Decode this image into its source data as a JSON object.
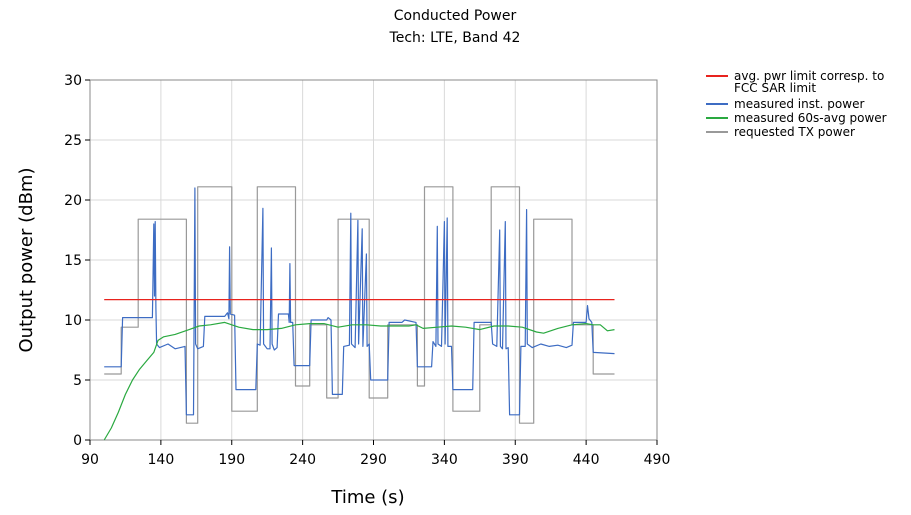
{
  "chart_data": {
    "type": "line",
    "title": "Conducted Power",
    "subtitle": "Tech: LTE, Band 42",
    "xlabel": "Time (s)",
    "ylabel": "Output power (dBm)",
    "xlim": [
      90,
      490
    ],
    "ylim": [
      0,
      30
    ],
    "xticks": [
      90,
      140,
      190,
      240,
      290,
      340,
      390,
      440,
      490
    ],
    "yticks": [
      0,
      5,
      10,
      15,
      20,
      25,
      30
    ],
    "grid": true,
    "legend_position": "top-right",
    "series": [
      {
        "name": "avg. pwr limit corresp. to FCC SAR limit",
        "color": "#e8231e",
        "points": [
          [
            100,
            11.7
          ],
          [
            460,
            11.7
          ]
        ]
      },
      {
        "name": "measured inst. power",
        "color": "#3d6cc3",
        "points": [
          [
            100,
            6.1
          ],
          [
            112,
            6.1
          ],
          [
            113,
            10.2
          ],
          [
            134,
            10.2
          ],
          [
            134.5,
            14
          ],
          [
            135,
            18
          ],
          [
            135.5,
            12
          ],
          [
            136,
            18.2
          ],
          [
            136.5,
            11
          ],
          [
            137,
            8
          ],
          [
            139,
            7.7
          ],
          [
            145,
            8
          ],
          [
            150,
            7.6
          ],
          [
            157,
            7.8
          ],
          [
            158,
            2.1
          ],
          [
            163,
            2.1
          ],
          [
            164,
            21
          ],
          [
            164.5,
            8
          ],
          [
            166,
            7.6
          ],
          [
            170,
            7.8
          ],
          [
            171,
            10.3
          ],
          [
            185,
            10.3
          ],
          [
            187,
            10.6
          ],
          [
            188,
            10.1
          ],
          [
            188.5,
            16.1
          ],
          [
            189,
            10.5
          ],
          [
            192,
            10.4
          ],
          [
            193,
            4.2
          ],
          [
            207,
            4.2
          ],
          [
            208,
            8
          ],
          [
            210,
            7.9
          ],
          [
            212,
            19.3
          ],
          [
            212.5,
            8
          ],
          [
            215,
            7.6
          ],
          [
            217,
            7.6
          ],
          [
            218,
            16
          ],
          [
            218.5,
            8
          ],
          [
            220,
            7.5
          ],
          [
            222,
            7.7
          ],
          [
            223,
            10.5
          ],
          [
            230,
            10.5
          ],
          [
            230.5,
            9.8
          ],
          [
            231,
            14.7
          ],
          [
            231.5,
            9.8
          ],
          [
            233,
            9.8
          ],
          [
            234,
            6.2
          ],
          [
            245,
            6.2
          ],
          [
            246,
            10
          ],
          [
            257,
            10
          ],
          [
            258,
            10.2
          ],
          [
            260,
            10
          ],
          [
            261,
            3.8
          ],
          [
            268,
            3.8
          ],
          [
            269,
            7.8
          ],
          [
            273,
            7.9
          ],
          [
            274,
            18.9
          ],
          [
            274.5,
            8
          ],
          [
            277,
            7.7
          ],
          [
            279,
            18.3
          ],
          [
            279.5,
            8
          ],
          [
            282,
            17.6
          ],
          [
            282.5,
            7.8
          ],
          [
            285,
            15.5
          ],
          [
            285.5,
            7.8
          ],
          [
            287,
            8
          ],
          [
            288,
            5
          ],
          [
            300,
            5
          ],
          [
            301,
            9.8
          ],
          [
            310,
            9.8
          ],
          [
            312,
            10
          ],
          [
            320,
            9.8
          ],
          [
            321,
            6.1
          ],
          [
            331,
            6.1
          ],
          [
            332,
            8.2
          ],
          [
            334,
            7.8
          ],
          [
            335,
            17.8
          ],
          [
            335.5,
            8
          ],
          [
            338,
            7.8
          ],
          [
            340,
            18.2
          ],
          [
            340.5,
            8
          ],
          [
            342,
            18.5
          ],
          [
            342.5,
            7.8
          ],
          [
            345,
            7.8
          ],
          [
            346,
            4.2
          ],
          [
            360,
            4.2
          ],
          [
            361,
            9.8
          ],
          [
            373,
            9.8
          ],
          [
            374,
            8
          ],
          [
            377,
            7.8
          ],
          [
            379,
            17.5
          ],
          [
            379.5,
            7.8
          ],
          [
            381,
            7.6
          ],
          [
            383,
            18.2
          ],
          [
            383.5,
            7.6
          ],
          [
            385,
            7.7
          ],
          [
            386,
            2.1
          ],
          [
            393,
            2.1
          ],
          [
            394,
            7.8
          ],
          [
            397,
            7.8
          ],
          [
            398,
            19.2
          ],
          [
            398.5,
            8
          ],
          [
            402,
            7.7
          ],
          [
            408,
            8
          ],
          [
            414,
            7.8
          ],
          [
            420,
            7.9
          ],
          [
            426,
            7.7
          ],
          [
            430,
            7.9
          ],
          [
            431,
            9.8
          ],
          [
            440,
            9.8
          ],
          [
            441,
            11.2
          ],
          [
            442,
            10.1
          ],
          [
            444,
            9.8
          ],
          [
            445,
            7.3
          ],
          [
            460,
            7.2
          ]
        ]
      },
      {
        "name": "measured 60s-avg power",
        "color": "#2aa940",
        "points": [
          [
            100,
            0
          ],
          [
            105,
            1
          ],
          [
            110,
            2.3
          ],
          [
            115,
            3.8
          ],
          [
            120,
            5
          ],
          [
            125,
            5.9
          ],
          [
            130,
            6.6
          ],
          [
            135,
            7.3
          ],
          [
            138,
            8.3
          ],
          [
            142,
            8.6
          ],
          [
            150,
            8.8
          ],
          [
            160,
            9.2
          ],
          [
            167,
            9.5
          ],
          [
            175,
            9.6
          ],
          [
            185,
            9.8
          ],
          [
            195,
            9.4
          ],
          [
            205,
            9.2
          ],
          [
            215,
            9.2
          ],
          [
            225,
            9.3
          ],
          [
            235,
            9.6
          ],
          [
            245,
            9.7
          ],
          [
            255,
            9.7
          ],
          [
            265,
            9.4
          ],
          [
            275,
            9.6
          ],
          [
            285,
            9.6
          ],
          [
            295,
            9.5
          ],
          [
            305,
            9.5
          ],
          [
            315,
            9.5
          ],
          [
            320,
            9.6
          ],
          [
            325,
            9.3
          ],
          [
            335,
            9.4
          ],
          [
            345,
            9.5
          ],
          [
            355,
            9.4
          ],
          [
            365,
            9.2
          ],
          [
            375,
            9.5
          ],
          [
            385,
            9.5
          ],
          [
            395,
            9.4
          ],
          [
            405,
            9.0
          ],
          [
            410,
            8.9
          ],
          [
            420,
            9.3
          ],
          [
            430,
            9.6
          ],
          [
            440,
            9.7
          ],
          [
            445,
            9.6
          ],
          [
            450,
            9.6
          ],
          [
            455,
            9.1
          ],
          [
            460,
            9.2
          ]
        ]
      },
      {
        "name": "requested TX power",
        "color": "#999999",
        "points": [
          [
            100,
            5.5
          ],
          [
            112,
            5.5
          ],
          [
            112,
            9.4
          ],
          [
            124,
            9.4
          ],
          [
            124,
            18.4
          ],
          [
            158,
            18.4
          ],
          [
            158,
            1.4
          ],
          [
            166,
            1.4
          ],
          [
            166,
            21.1
          ],
          [
            190,
            21.1
          ],
          [
            190,
            2.4
          ],
          [
            208,
            2.4
          ],
          [
            208,
            21.1
          ],
          [
            235,
            21.1
          ],
          [
            235,
            4.5
          ],
          [
            245,
            4.5
          ],
          [
            245,
            9.6
          ],
          [
            257,
            9.6
          ],
          [
            257,
            3.5
          ],
          [
            265,
            3.5
          ],
          [
            265,
            18.4
          ],
          [
            287,
            18.4
          ],
          [
            287,
            3.5
          ],
          [
            300,
            3.5
          ],
          [
            300,
            9.6
          ],
          [
            321,
            9.6
          ],
          [
            321,
            4.5
          ],
          [
            326,
            4.5
          ],
          [
            326,
            21.1
          ],
          [
            346,
            21.1
          ],
          [
            346,
            2.4
          ],
          [
            365,
            2.4
          ],
          [
            365,
            9.6
          ],
          [
            373,
            9.6
          ],
          [
            373,
            21.1
          ],
          [
            393,
            21.1
          ],
          [
            393,
            1.4
          ],
          [
            403,
            1.4
          ],
          [
            403,
            18.4
          ],
          [
            430,
            18.4
          ],
          [
            430,
            9.6
          ],
          [
            445,
            9.6
          ],
          [
            445,
            5.5
          ],
          [
            460,
            5.5
          ]
        ]
      }
    ]
  }
}
